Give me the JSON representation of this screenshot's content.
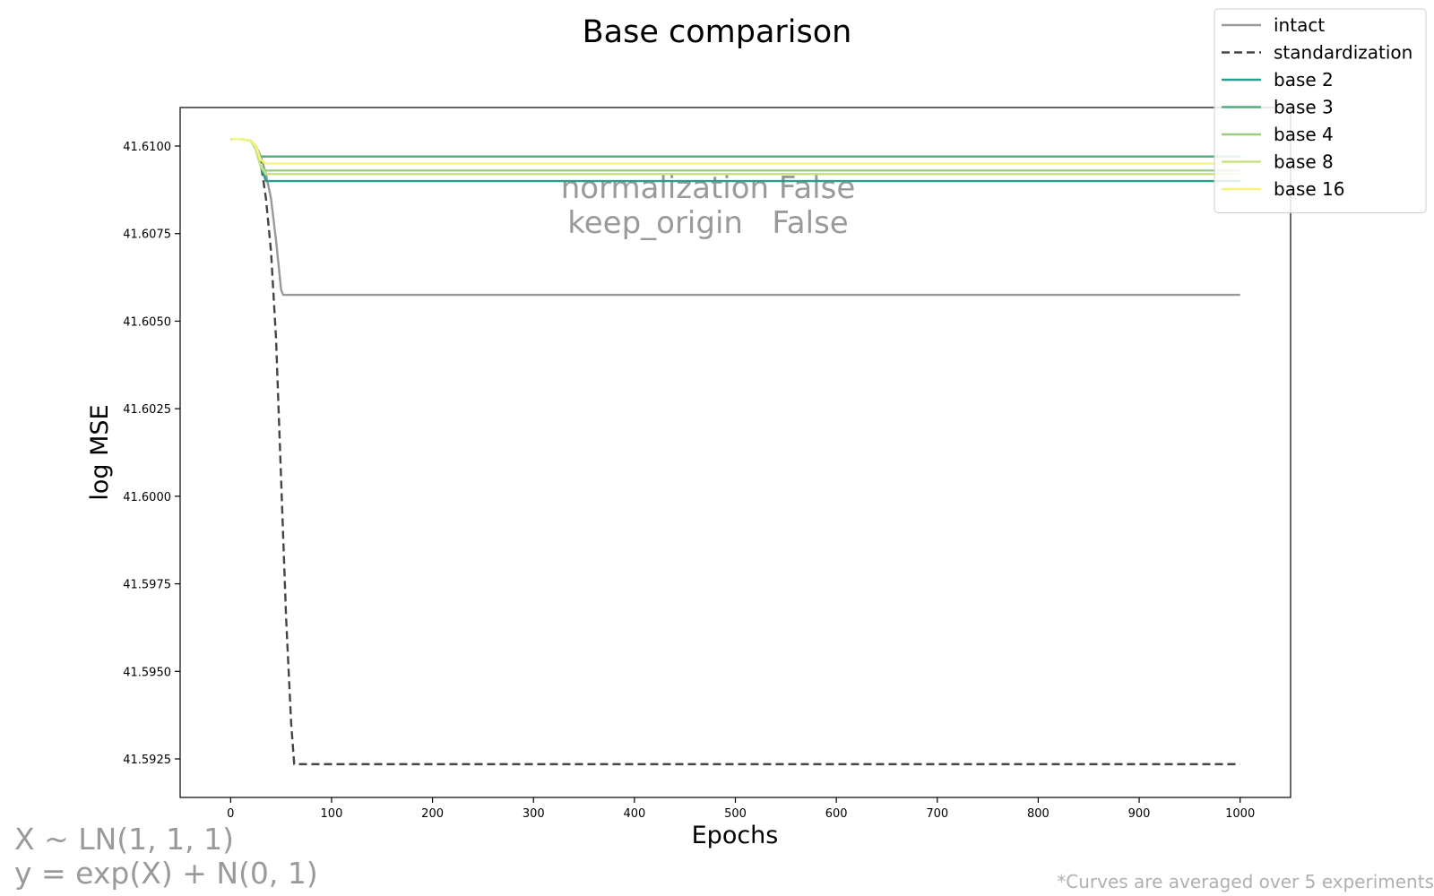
{
  "chart_data": {
    "type": "line",
    "title": "Base comparison",
    "xlabel": "Epochs",
    "ylabel": "log MSE",
    "xlim": [
      -50,
      1050
    ],
    "ylim": [
      41.5914,
      41.6111
    ],
    "xticks": [
      0,
      100,
      200,
      300,
      400,
      500,
      600,
      700,
      800,
      900,
      1000
    ],
    "yticks": [
      41.5925,
      41.595,
      41.5975,
      41.6,
      41.6025,
      41.605,
      41.6075,
      41.61
    ],
    "ytick_labels": [
      "41.5925",
      "41.5950",
      "41.5975",
      "41.6000",
      "41.6025",
      "41.6050",
      "41.6075",
      "41.6100"
    ],
    "grid": false,
    "legend_position": "top-right",
    "annotation": [
      "normalization False",
      "keep_origin   False"
    ],
    "series": [
      {
        "name": "intact",
        "color": "#999999",
        "dash": "solid",
        "x": [
          0,
          10,
          20,
          25,
          30,
          35,
          40,
          45,
          50,
          52,
          60,
          100,
          500,
          1000
        ],
        "y": [
          41.6102,
          41.6102,
          41.61015,
          41.61,
          41.6097,
          41.6092,
          41.6085,
          41.6073,
          41.6059,
          41.60575,
          41.60575,
          41.60575,
          41.60575,
          41.60575
        ]
      },
      {
        "name": "standardization",
        "color": "#444444",
        "dash": "dashed",
        "x": [
          0,
          10,
          20,
          25,
          30,
          35,
          40,
          45,
          50,
          55,
          60,
          63,
          65,
          100,
          500,
          1000
        ],
        "y": [
          41.6102,
          41.6102,
          41.61015,
          41.61,
          41.6095,
          41.6085,
          41.607,
          41.6045,
          41.6005,
          41.5965,
          41.5935,
          41.59235,
          41.59235,
          41.59235,
          41.59235,
          41.59235
        ]
      },
      {
        "name": "base 2",
        "color": "#2a9d8f",
        "dash": "solid",
        "x": [
          0,
          10,
          20,
          25,
          30,
          35,
          1000
        ],
        "y": [
          41.6102,
          41.6102,
          41.61015,
          41.6099,
          41.6094,
          41.609,
          41.609
        ]
      },
      {
        "name": "base 3",
        "color": "#4caf7a",
        "dash": "solid",
        "x": [
          0,
          10,
          20,
          25,
          30,
          35,
          1000
        ],
        "y": [
          41.6102,
          41.6102,
          41.61015,
          41.6099,
          41.6097,
          41.6097,
          41.6097
        ]
      },
      {
        "name": "base 4",
        "color": "#9ccc80",
        "dash": "solid",
        "x": [
          0,
          10,
          20,
          25,
          30,
          35,
          1000
        ],
        "y": [
          41.6102,
          41.6102,
          41.61015,
          41.6099,
          41.6094,
          41.6093,
          41.6093
        ]
      },
      {
        "name": "base 8",
        "color": "#c5e384",
        "dash": "solid",
        "x": [
          0,
          10,
          20,
          25,
          30,
          35,
          1000
        ],
        "y": [
          41.6102,
          41.6102,
          41.61015,
          41.6099,
          41.6094,
          41.6092,
          41.6092
        ]
      },
      {
        "name": "base 16",
        "color": "#f5f57a",
        "dash": "solid",
        "x": [
          0,
          10,
          20,
          25,
          30,
          35,
          1000
        ],
        "y": [
          41.6102,
          41.6102,
          41.61015,
          41.61,
          41.6096,
          41.6095,
          41.6095
        ]
      }
    ]
  },
  "notes": {
    "formula_line1": "X ~ LN(1, 1, 1)",
    "formula_line2": "y = exp(X) + N(0, 1)",
    "footnote": "*Curves are averaged over 5 experiments"
  }
}
